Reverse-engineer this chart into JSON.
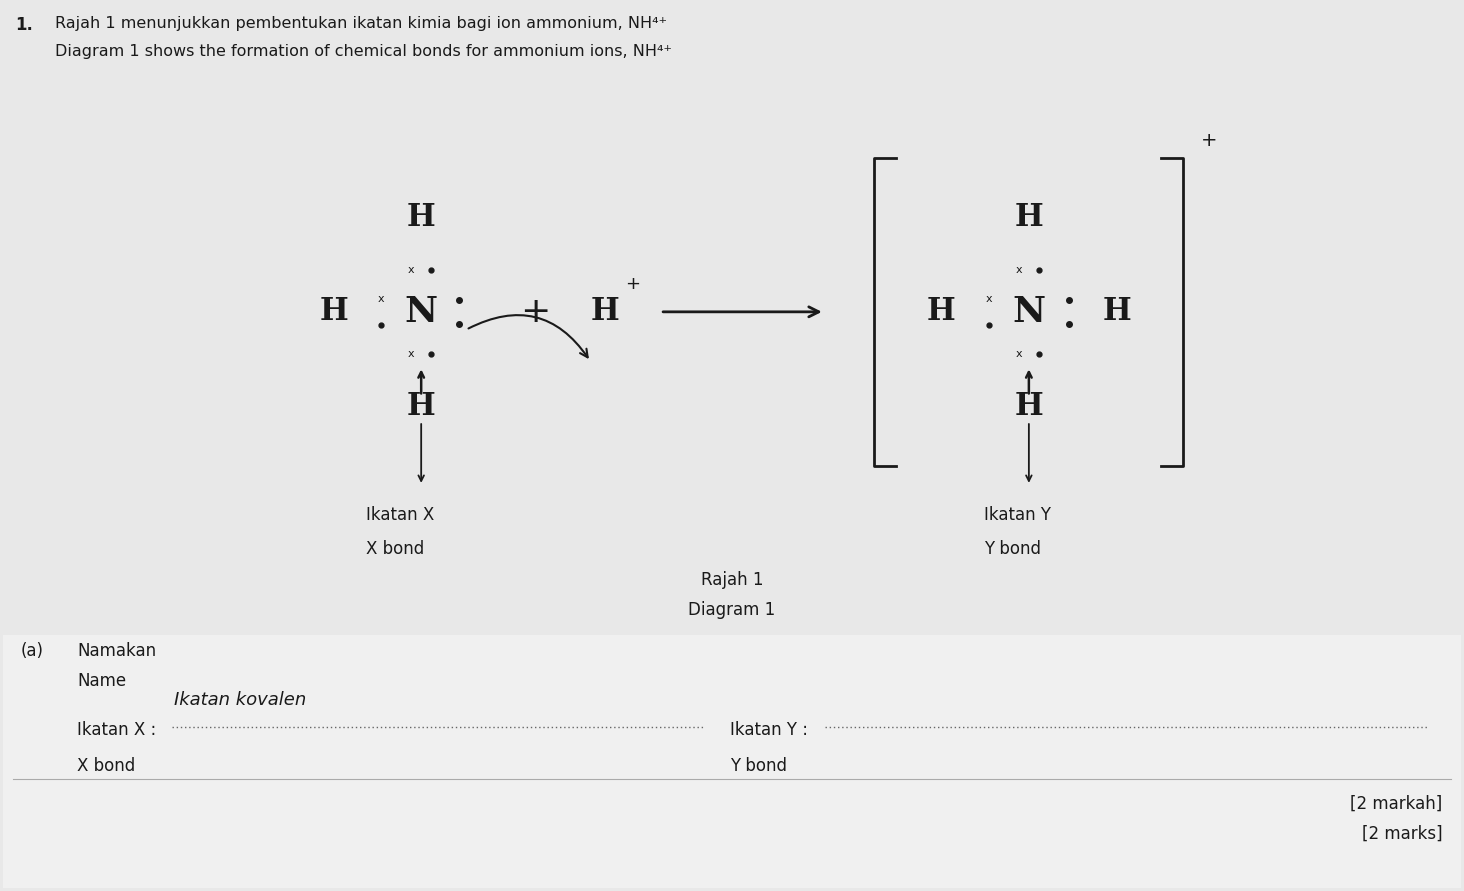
{
  "bg_color": "#e8e8e8",
  "font_color": "#1a1a1a",
  "question_number": "1.",
  "title_line1": "Rajah 1 menunjukkan pembentukan ikatan kimia bagi ion ammonium, NH⁴⁺",
  "title_line2": "Diagram 1 shows the formation of chemical bonds for ammonium ions, NH⁴⁺",
  "section_label_a": "(a)",
  "namakan": "Namakan",
  "name": "Name",
  "ikatan_x_label": "Ikatan X",
  "x_bond_label": "X bond",
  "ikatan_y_label": "Ikatan Y",
  "y_bond_label": "Y bond",
  "rajah_label": "Rajah 1",
  "diagram_label": "Diagram 1",
  "marks_label": "[2 markah]",
  "marks_label2": "[2 marks]",
  "ikatan_x_answer": "Ikatan kovalen",
  "Nx_L": 4.2,
  "Ny_L": 5.8,
  "Nx_R": 10.3,
  "Ny_R": 5.8
}
